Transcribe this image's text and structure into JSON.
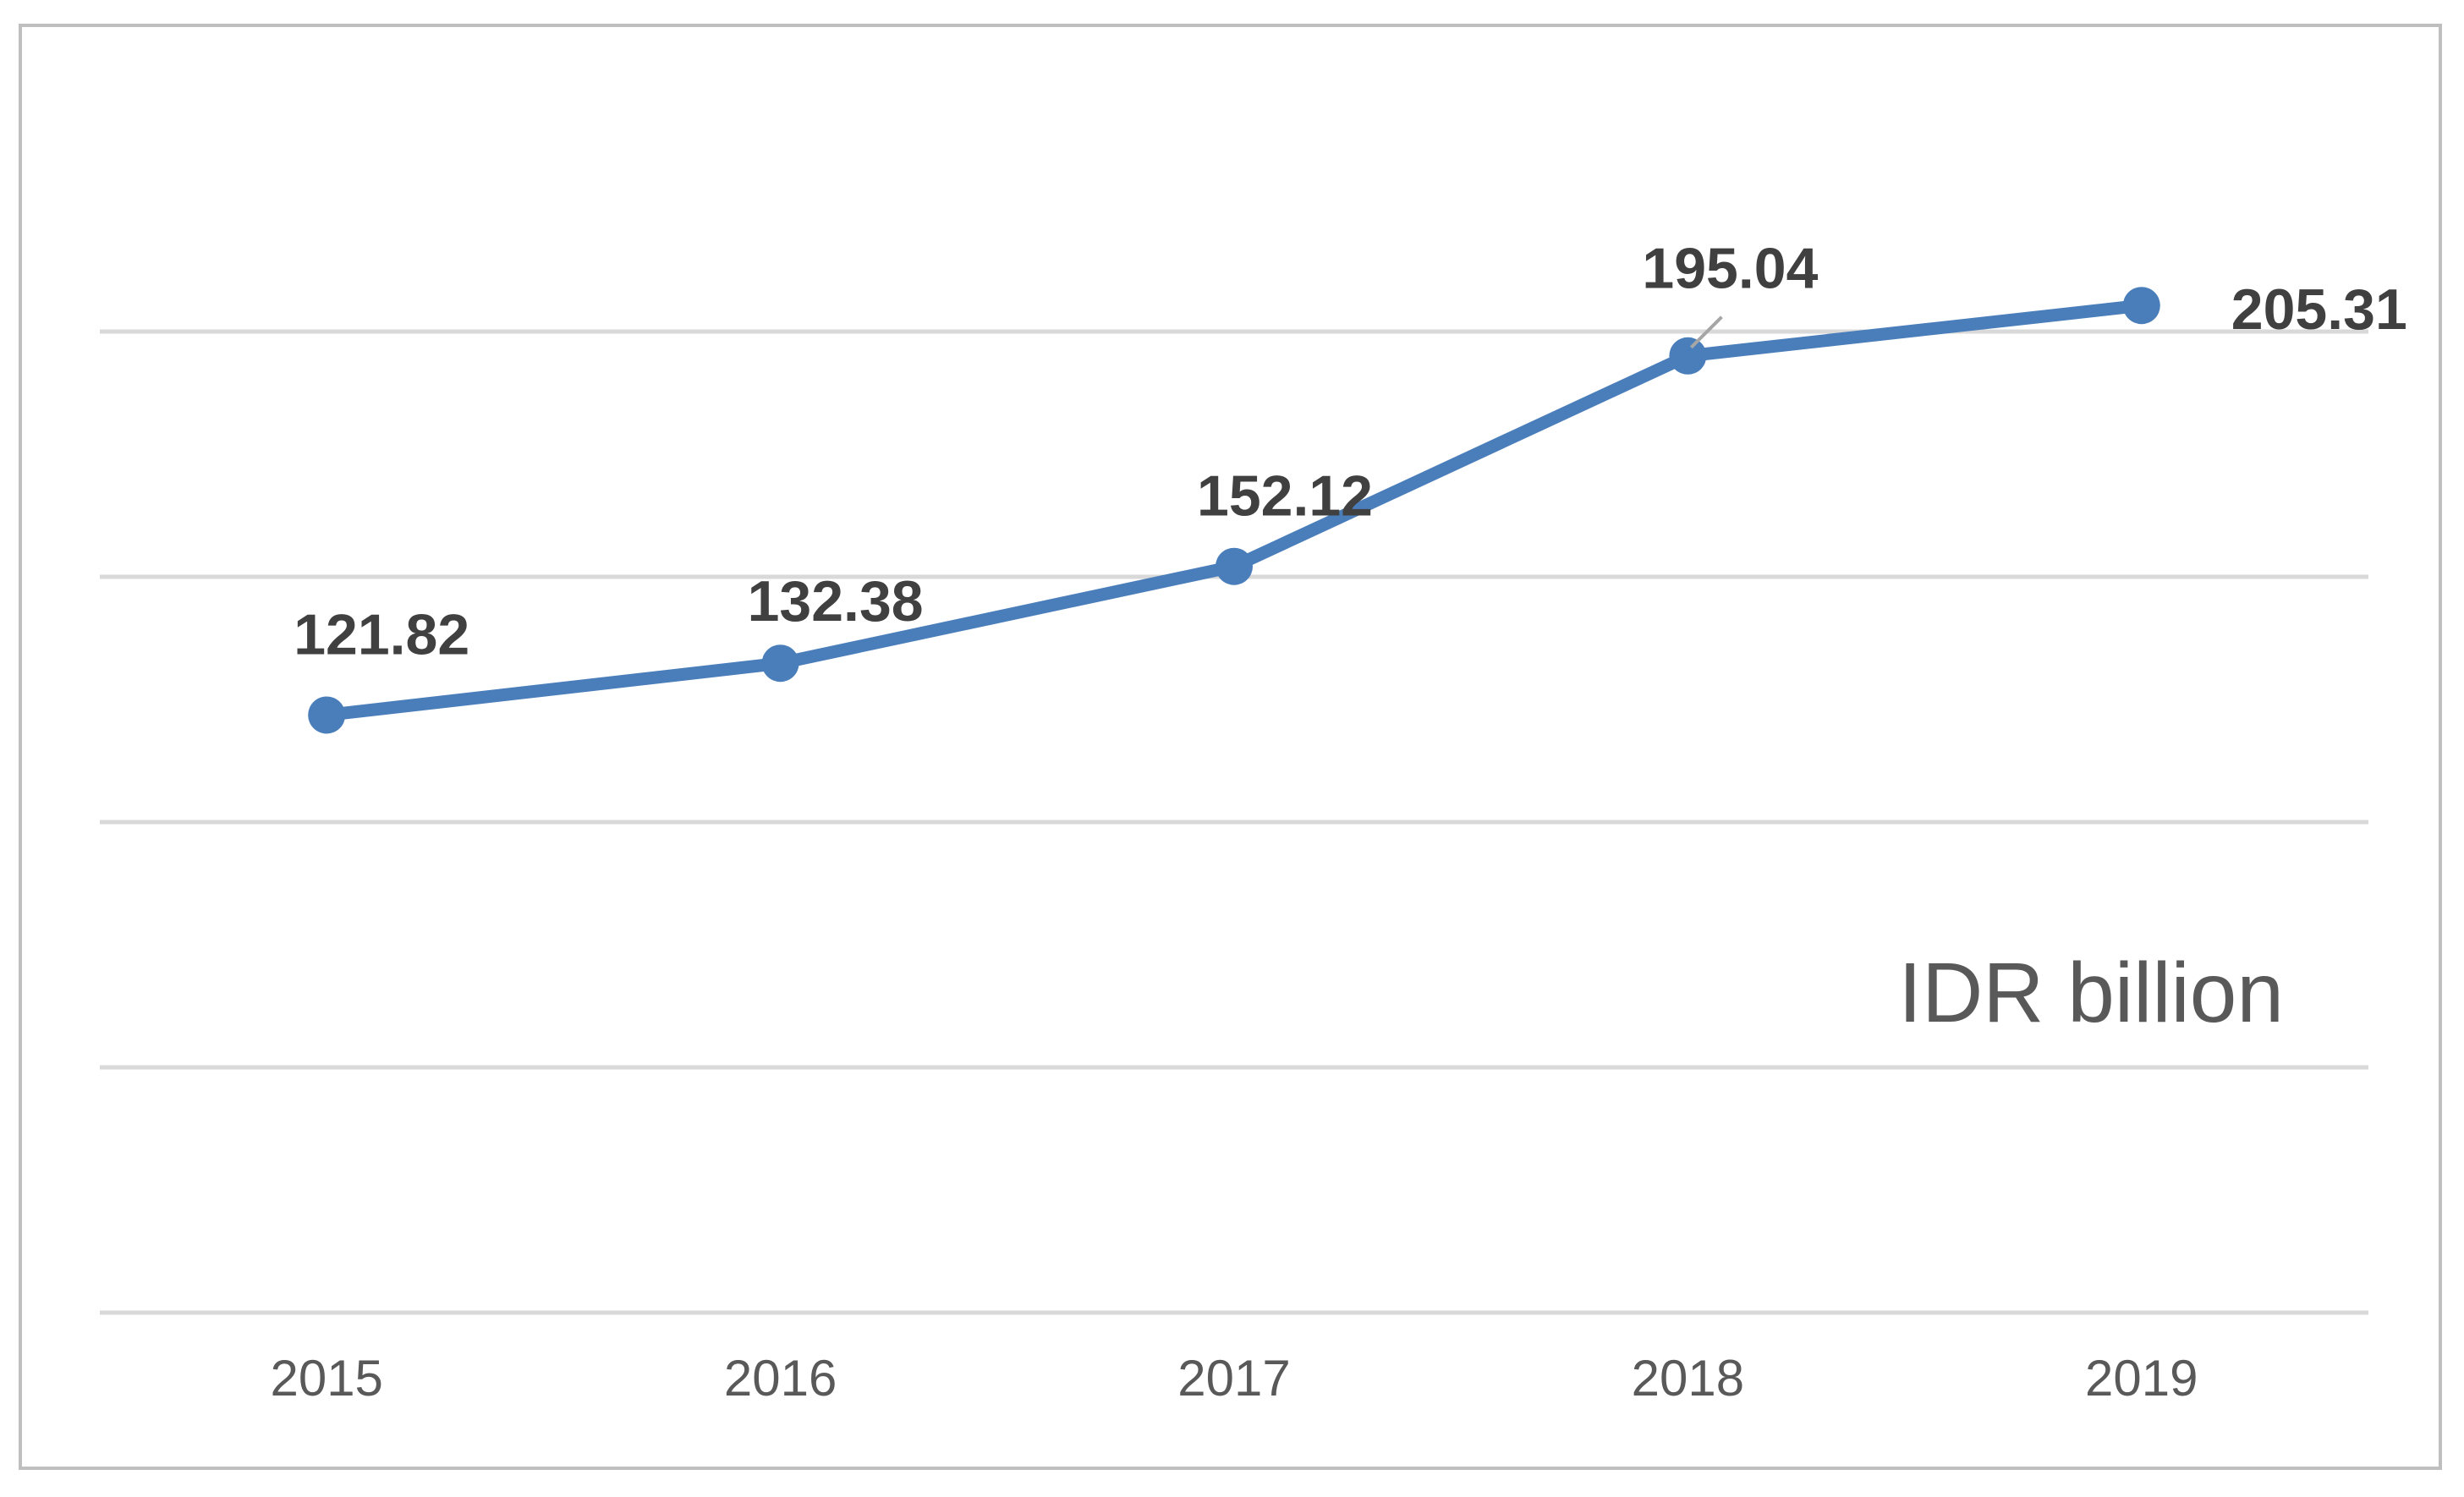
{
  "chart_data": {
    "type": "line",
    "categories": [
      "2015",
      "2016",
      "2017",
      "2018",
      "2019"
    ],
    "series": [
      {
        "values": [
          121.82,
          132.38,
          152.12,
          195.04,
          205.31
        ],
        "color": "#4a7ebb"
      }
    ],
    "data_labels": [
      "121.82",
      "132.38",
      "152.12",
      "195.04",
      "205.31"
    ],
    "annotation": "IDR billion",
    "ylim": [
      0,
      250
    ],
    "grid": true,
    "legend": "none"
  }
}
